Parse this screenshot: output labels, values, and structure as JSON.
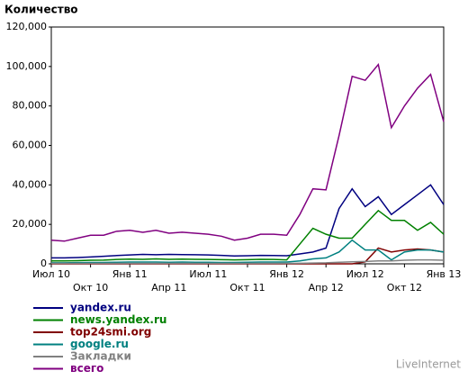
{
  "chart_data": {
    "type": "line",
    "title": "Количество",
    "categories": [
      "Июл 10",
      null,
      null,
      "Окт 10",
      null,
      null,
      "Янв 11",
      null,
      null,
      "Апр 11",
      null,
      null,
      "Июл 11",
      null,
      null,
      "Окт 11",
      null,
      null,
      "Янв 12",
      null,
      null,
      "Апр 12",
      null,
      null,
      "Июл 12",
      null,
      null,
      "Окт 12",
      null,
      null,
      "Янв 13"
    ],
    "series": [
      {
        "name": "yandex.ru",
        "color": "#000080",
        "values": [
          3000,
          3000,
          3200,
          3500,
          3800,
          4200,
          4500,
          4800,
          4600,
          4800,
          4700,
          4600,
          4500,
          4300,
          4000,
          4100,
          4300,
          4200,
          4100,
          5000,
          6000,
          8000,
          28000,
          38000,
          29000,
          34000,
          25000,
          30000,
          35000,
          40000,
          30000
        ]
      },
      {
        "name": "news.yandex.ru",
        "color": "#008000",
        "values": [
          1500,
          1500,
          1600,
          1800,
          1900,
          2200,
          2400,
          2300,
          2500,
          2300,
          2400,
          2300,
          2200,
          2100,
          2000,
          2100,
          2300,
          2200,
          2000,
          10000,
          18000,
          15000,
          13000,
          13000,
          20000,
          27000,
          22000,
          22000,
          17000,
          21000,
          15000
        ]
      },
      {
        "name": "top24smi.org",
        "color": "#800000",
        "values": [
          0,
          0,
          0,
          0,
          0,
          0,
          0,
          0,
          0,
          0,
          0,
          0,
          0,
          0,
          0,
          0,
          0,
          0,
          0,
          0,
          0,
          0,
          0,
          0,
          1000,
          8000,
          6000,
          7000,
          7500,
          7000,
          6000
        ]
      },
      {
        "name": "google.ru",
        "color": "#008080",
        "values": [
          500,
          500,
          600,
          700,
          700,
          800,
          900,
          900,
          900,
          800,
          900,
          800,
          800,
          700,
          700,
          800,
          900,
          900,
          900,
          1500,
          2500,
          3000,
          6000,
          12000,
          7000,
          7000,
          2000,
          6000,
          7000,
          7000,
          6000
        ]
      },
      {
        "name": "Закладки",
        "color": "#808080",
        "values": [
          200,
          200,
          200,
          200,
          200,
          200,
          200,
          200,
          200,
          200,
          200,
          200,
          200,
          200,
          200,
          200,
          200,
          200,
          200,
          300,
          400,
          500,
          800,
          1000,
          1200,
          1500,
          1500,
          1800,
          2000,
          2000,
          1800
        ]
      },
      {
        "name": "всего",
        "color": "#800080",
        "values": [
          12000,
          11500,
          13000,
          14500,
          14500,
          16500,
          17000,
          16000,
          17000,
          15500,
          16000,
          15500,
          15000,
          14000,
          12000,
          13000,
          15000,
          15000,
          14500,
          25000,
          38000,
          37500,
          65000,
          95000,
          93000,
          101000,
          69000,
          80000,
          89000,
          96000,
          72000
        ]
      }
    ],
    "ylim": [
      0,
      120000
    ],
    "yticks": [
      0,
      {
        "value": 20000,
        "label": "20,000"
      },
      {
        "value": 40000,
        "label": "40,000"
      },
      {
        "value": 60000,
        "label": "60,000"
      },
      {
        "value": 80000,
        "label": "80,000"
      },
      {
        "value": 100000,
        "label": "100,000"
      },
      {
        "value": 120000,
        "label": "120,000"
      }
    ],
    "grid": false,
    "watermark": "LiveInternet"
  }
}
